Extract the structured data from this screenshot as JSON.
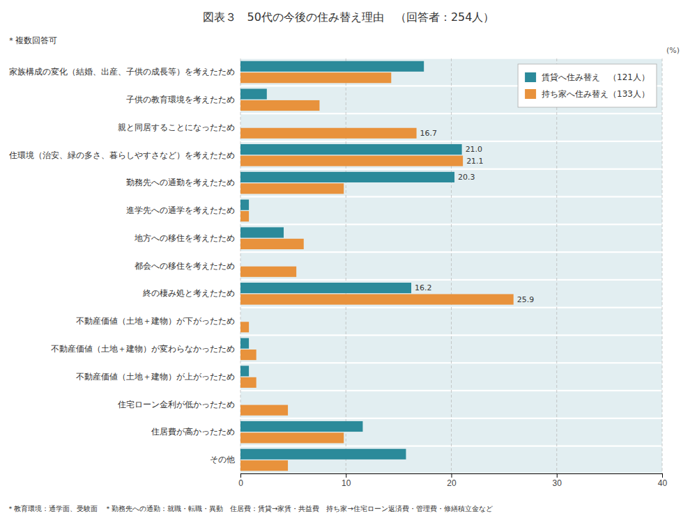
{
  "chart_data": {
    "type": "bar",
    "orientation": "horizontal",
    "title": "図表３　50代の今後の住み替え理由　（回答者：254人）",
    "xlabel": "(%)",
    "annotations": [
      "＊複数回答可",
      "＊教育環境：通学面、受験面　＊勤務先への通勤：就職・転職・異動　住居費：賃貸→家賃・共益費　持ち家→住宅ローン返済費・管理費・修繕積立金など"
    ],
    "categories": [
      "家族構成の変化（結婚、出産、子供の成長等）を考えたため",
      "子供の教育環境を考えたため",
      "親と同居することになったため",
      "住環境（治安、緑の多さ、暮らしやすさなど）を考えたため",
      "勤務先への通勤を考えたため",
      "進学先への通学を考えたため",
      "地方への移住を考えたため",
      "都会への移住を考えたため",
      "終の棲み処と考えたため",
      "不動産価値（土地＋建物）が下がったため",
      "不動産価値（土地＋建物）が変わらなかったため",
      "不動産価値（土地＋建物）が上がったため",
      "住宅ローン金利が低かったため",
      "住居費が高かったため",
      "その他"
    ],
    "series": [
      {
        "name": "賃貸へ住み替え　（121人）",
        "color": "#2b8a9a",
        "values": [
          17.4,
          2.5,
          0.0,
          21.0,
          20.3,
          0.8,
          4.1,
          0.0,
          16.2,
          0.0,
          0.8,
          0.8,
          0.0,
          11.6,
          15.7
        ],
        "value_labels": [
          null,
          null,
          null,
          "21.0",
          "20.3",
          null,
          null,
          null,
          "16.2",
          null,
          null,
          null,
          null,
          null,
          null
        ]
      },
      {
        "name": "持ち家へ住み替え（133人）",
        "color": "#e8923c",
        "values": [
          14.3,
          7.5,
          16.7,
          21.1,
          9.8,
          0.8,
          6.0,
          5.3,
          25.9,
          0.8,
          1.5,
          1.5,
          4.5,
          9.8,
          4.5
        ],
        "value_labels": [
          null,
          null,
          "16.7",
          "21.1",
          null,
          null,
          null,
          null,
          "25.9",
          null,
          null,
          null,
          null,
          null,
          null
        ]
      }
    ],
    "xlim": [
      0,
      40
    ],
    "xticks": [
      0,
      10,
      20,
      30,
      40
    ],
    "grid": true,
    "legend": "upper right",
    "data_labels": true
  }
}
